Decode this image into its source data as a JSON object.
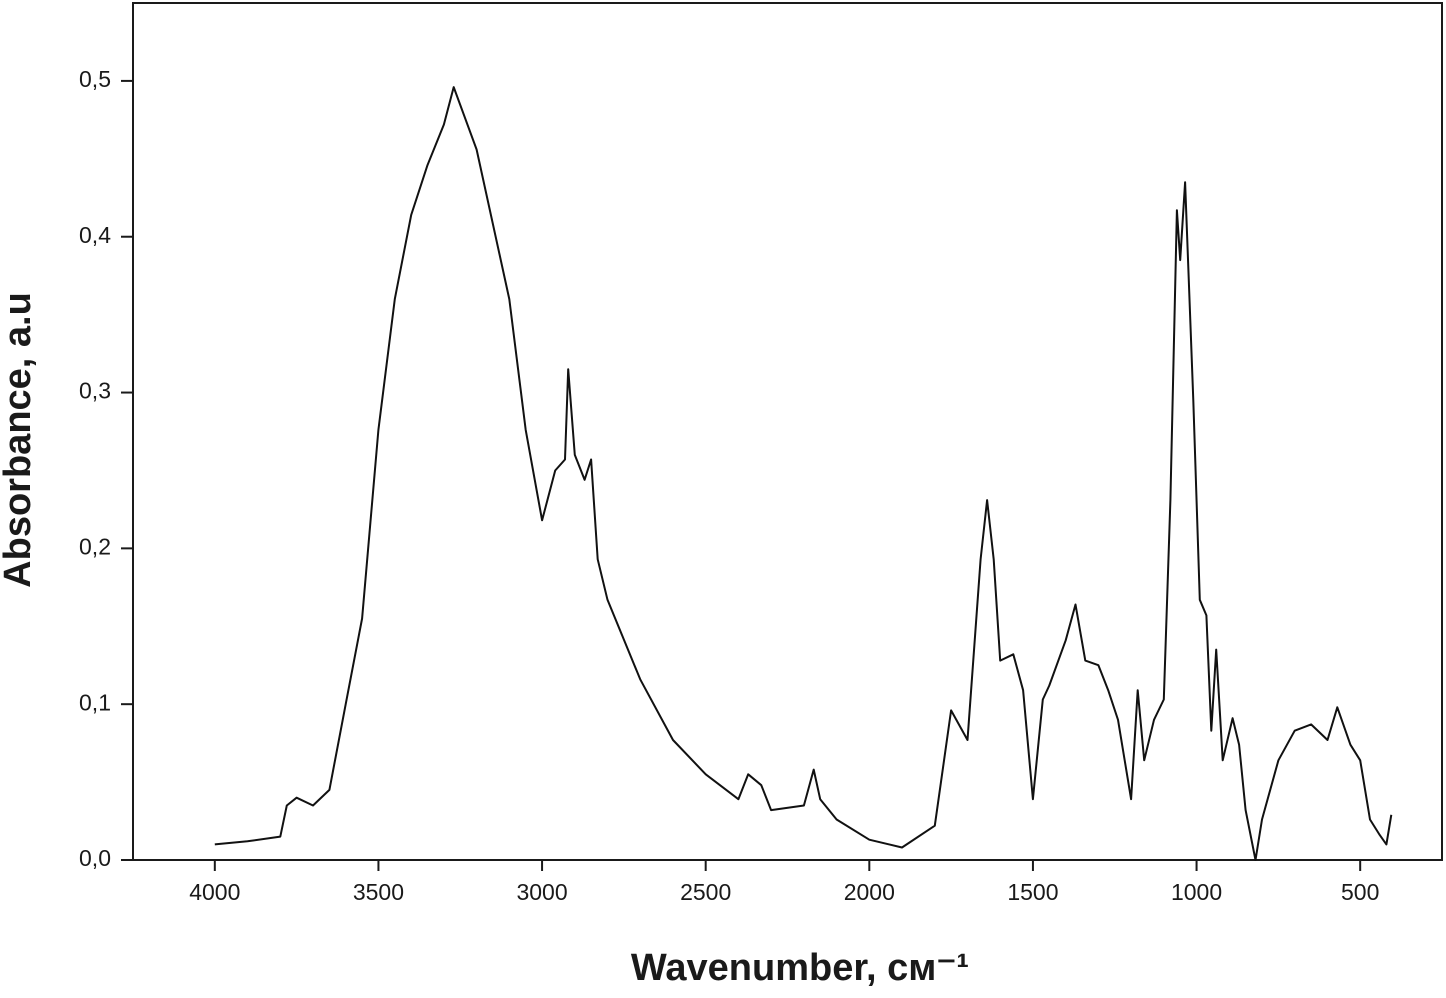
{
  "chart_data": {
    "type": "line",
    "x_label": "Wavenumber, см⁻¹",
    "y_label": "Absorbance, a.u",
    "xlim": [
      4250,
      250
    ],
    "ylim": [
      0,
      0.55
    ],
    "xticks": [
      4000,
      3500,
      3000,
      2500,
      2000,
      1500,
      1000,
      500
    ],
    "yticks": [
      {
        "value": 0,
        "label": "0,0"
      },
      {
        "value": 0.1,
        "label": "0,1"
      },
      {
        "value": 0.2,
        "label": "0,2"
      },
      {
        "value": 0.3,
        "label": "0,3"
      },
      {
        "value": 0.4,
        "label": "0,4"
      },
      {
        "value": 0.5,
        "label": "0,5"
      }
    ],
    "x": [
      4000,
      3900,
      3800,
      3780,
      3750,
      3700,
      3650,
      3600,
      3550,
      3500,
      3450,
      3400,
      3350,
      3300,
      3270,
      3200,
      3100,
      3050,
      3000,
      2960,
      2930,
      2920,
      2900,
      2870,
      2850,
      2830,
      2800,
      2700,
      2600,
      2500,
      2400,
      2370,
      2330,
      2300,
      2200,
      2170,
      2150,
      2100,
      2000,
      1900,
      1800,
      1750,
      1700,
      1660,
      1640,
      1620,
      1600,
      1560,
      1530,
      1500,
      1470,
      1450,
      1400,
      1370,
      1340,
      1300,
      1270,
      1240,
      1200,
      1180,
      1160,
      1130,
      1100,
      1080,
      1060,
      1050,
      1035,
      1010,
      990,
      970,
      955,
      940,
      920,
      890,
      870,
      850,
      820,
      800,
      750,
      700,
      650,
      600,
      570,
      530,
      500,
      470,
      440,
      420,
      405
    ],
    "series": [
      {
        "color": "#111111",
        "values": [
          0.01,
          0.012,
          0.015,
          0.035,
          0.04,
          0.035,
          0.045,
          0.1,
          0.155,
          0.276,
          0.36,
          0.414,
          0.446,
          0.472,
          0.496,
          0.456,
          0.36,
          0.276,
          0.218,
          0.25,
          0.257,
          0.315,
          0.26,
          0.244,
          0.257,
          0.193,
          0.167,
          0.116,
          0.077,
          0.055,
          0.039,
          0.055,
          0.048,
          0.032,
          0.035,
          0.058,
          0.039,
          0.026,
          0.013,
          0.008,
          0.022,
          0.096,
          0.077,
          0.193,
          0.231,
          0.193,
          0.128,
          0.132,
          0.109,
          0.039,
          0.103,
          0.112,
          0.141,
          0.164,
          0.128,
          0.125,
          0.109,
          0.09,
          0.039,
          0.109,
          0.064,
          0.09,
          0.103,
          0.231,
          0.417,
          0.385,
          0.435,
          0.295,
          0.167,
          0.157,
          0.083,
          0.135,
          0.064,
          0.091,
          0.074,
          0.032,
          0.0,
          0.026,
          0.064,
          0.083,
          0.087,
          0.077,
          0.098,
          0.074,
          0.064,
          0.026,
          0.016,
          0.01,
          0.029
        ]
      }
    ]
  }
}
